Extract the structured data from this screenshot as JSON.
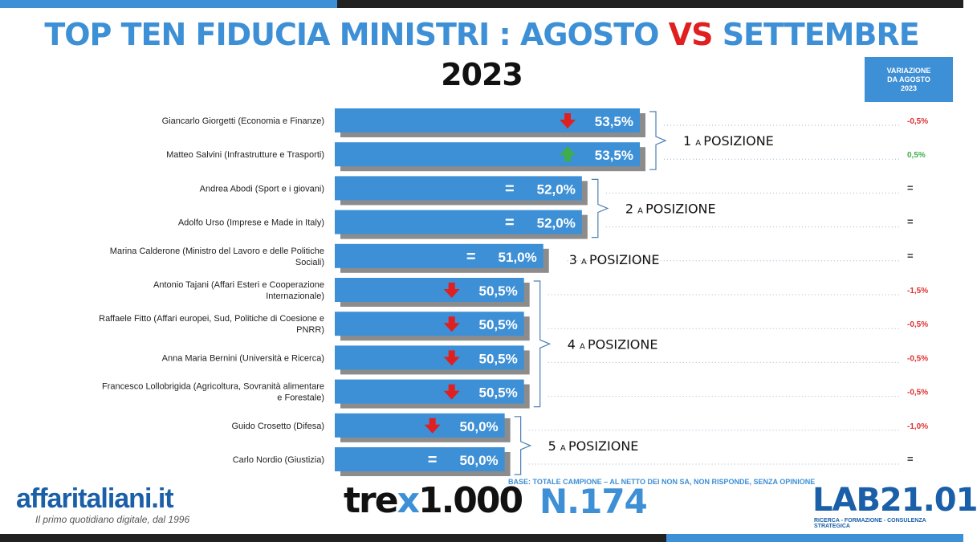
{
  "header": {
    "title_part1": "TOP TEN FIDUCIA MINISTRI :",
    "title_part2": "AGOSTO",
    "title_part3": "VS",
    "title_part4": "SETTEMBRE",
    "title_part5": "2023",
    "variation_header": "VARIAZIONE\nDA AGOSTO\n2023"
  },
  "colors": {
    "bar": "#3d8fd6",
    "shadow": "#8c8c8c",
    "down": "#e02020",
    "up": "#3fae49",
    "negative_text": "#e03030",
    "positive_text": "#3fae49"
  },
  "chart_data": {
    "type": "bar",
    "orientation": "horizontal",
    "categories": [
      "Giancarlo Giorgetti (Economia e Finanze)",
      "Matteo Salvini (Infrastrutture e Trasporti)",
      "Andrea Abodi (Sport e i giovani)",
      "Adolfo Urso (Imprese e Made in Italy)",
      "Marina Calderone (Ministro del Lavoro e delle Politiche Sociali)",
      "Antonio Tajani (Affari Esteri e Cooperazione Internazionale)",
      "Raffaele Fitto (Affari europei, Sud, Politiche di Coesione e PNRR)",
      "Anna Maria Bernini (Università e Ricerca)",
      "Francesco Lollobrigida (Agricoltura, Sovranità alimentare e Forestale)",
      "Guido Crosetto (Difesa)",
      "Carlo Nordio (Giustizia)"
    ],
    "category_lines": [
      [
        "Giancarlo Giorgetti (Economia e Finanze)"
      ],
      [
        "Matteo Salvini (Infrastrutture e Trasporti)"
      ],
      [
        "Andrea Abodi (Sport e i giovani)"
      ],
      [
        "Adolfo Urso (Imprese e Made in Italy)"
      ],
      [
        "Marina Calderone (Ministro del Lavoro e delle Politiche",
        "Sociali)"
      ],
      [
        "Antonio Tajani (Affari Esteri e Cooperazione",
        "Internazionale)"
      ],
      [
        "Raffaele Fitto (Affari europei, Sud, Politiche di Coesione e",
        "PNRR)"
      ],
      [
        "Anna Maria Bernini (Università e Ricerca)"
      ],
      [
        "Francesco Lollobrigida (Agricoltura, Sovranità alimentare",
        "e Forestale)"
      ],
      [
        "Guido Crosetto (Difesa)"
      ],
      [
        "Carlo Nordio (Giustizia)"
      ]
    ],
    "values": [
      53.5,
      53.5,
      52.0,
      52.0,
      51.0,
      50.5,
      50.5,
      50.5,
      50.5,
      50.0,
      50.0
    ],
    "value_labels": [
      "53,5%",
      "53,5%",
      "52,0%",
      "52,0%",
      "51,0%",
      "50,5%",
      "50,5%",
      "50,5%",
      "50,5%",
      "50,0%",
      "50,0%"
    ],
    "trend": [
      "down",
      "up",
      "equal",
      "equal",
      "equal",
      "down",
      "down",
      "down",
      "down",
      "down",
      "equal"
    ],
    "variation_labels": [
      "-0,5%",
      "0,5%",
      "=",
      "=",
      "=",
      "-1,5%",
      "-0,5%",
      "-0,5%",
      "-0,5%",
      "-1,0%",
      "="
    ],
    "equal_symbol": "=",
    "positions": [
      {
        "label_num": "1",
        "label_sup": "A",
        "label_text": "POSIZIONE",
        "rows": [
          0,
          1
        ]
      },
      {
        "label_num": "2",
        "label_sup": "A",
        "label_text": "POSIZIONE",
        "rows": [
          2,
          3
        ]
      },
      {
        "label_num": "3",
        "label_sup": "A",
        "label_text": "POSIZIONE",
        "rows": [
          4
        ]
      },
      {
        "label_num": "4",
        "label_sup": "A",
        "label_text": "POSIZIONE",
        "rows": [
          5,
          6,
          7,
          8
        ]
      },
      {
        "label_num": "5",
        "label_sup": "A",
        "label_text": "POSIZIONE",
        "rows": [
          9,
          10
        ]
      }
    ],
    "xlim": [
      45.6,
      53.5
    ],
    "grid": false,
    "legend": "none"
  },
  "footer": {
    "brand": "affaritaliani",
    "brand_tld": ".it",
    "tagline": "Il primo quotidiano digitale, dal 1996",
    "base_note": "BASE: TOTALE CAMPIONE – AL NETTO DEI NON SA, NON RISPONDE, SENZA OPINIONE",
    "survey_prefix": "tre",
    "survey_x": "x",
    "survey_num": "1.000",
    "issue": "N.174",
    "lab_name": "LAB21.01",
    "lab_tagline": "RICERCA - FORMAZIONE - CONSULENZA STRATEGICA"
  }
}
